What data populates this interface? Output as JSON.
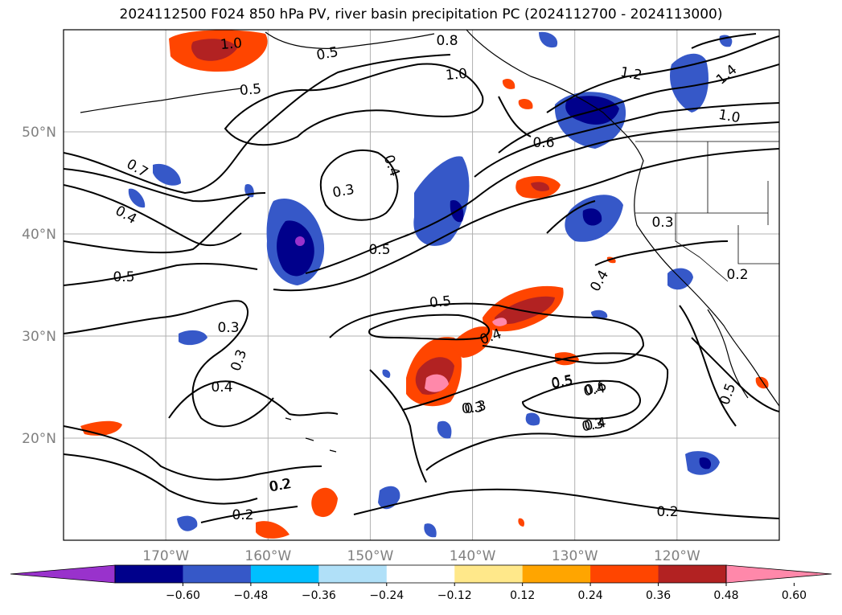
{
  "title": "2024112500 F024 850 hPa PV, river basin precipitation PC (2024112700 - 2024113000)",
  "map": {
    "lon_range": [
      -180,
      -110
    ],
    "lat_range": [
      10,
      60
    ],
    "lat_labels": [
      "50°N",
      "40°N",
      "30°N",
      "20°N"
    ],
    "lat_values": [
      50,
      40,
      30,
      20
    ],
    "lon_labels": [
      "170°W",
      "160°W",
      "150°W",
      "140°W",
      "130°W",
      "120°W"
    ],
    "lon_values": [
      -170,
      -160,
      -150,
      -140,
      -130,
      -120
    ],
    "gridlines": true
  },
  "contour_labels": [
    "1.0",
    "0.8",
    "0.5",
    "1.0",
    "1.2",
    "1.4",
    "1.0",
    "0.6",
    "0.7",
    "0.5",
    "0.4",
    "0.3",
    "0.5",
    "0.4",
    "0.5",
    "0.3",
    "0.4",
    "0.3",
    "0.4",
    "0.5",
    "0.3",
    "0.5",
    "0.4",
    "0.3",
    "0.2",
    "0.3",
    "0.6",
    "0.5",
    "0.4",
    "0.3",
    "0.2",
    "0.2",
    "0.2",
    "0.4",
    "0.5",
    "0.2"
  ],
  "colorbar": {
    "ticks": [
      "−0.60",
      "−0.48",
      "−0.36",
      "−0.24",
      "−0.12",
      "0.12",
      "0.24",
      "0.36",
      "0.48",
      "0.60"
    ],
    "colors": [
      "#9932cc",
      "#00008b",
      "#3658c8",
      "#00bfff",
      "#b0e0f8",
      "#ffffff",
      "#ffe88a",
      "#ffa500",
      "#ff4500",
      "#b22222",
      "#ff88aa"
    ],
    "extend": "both"
  }
}
